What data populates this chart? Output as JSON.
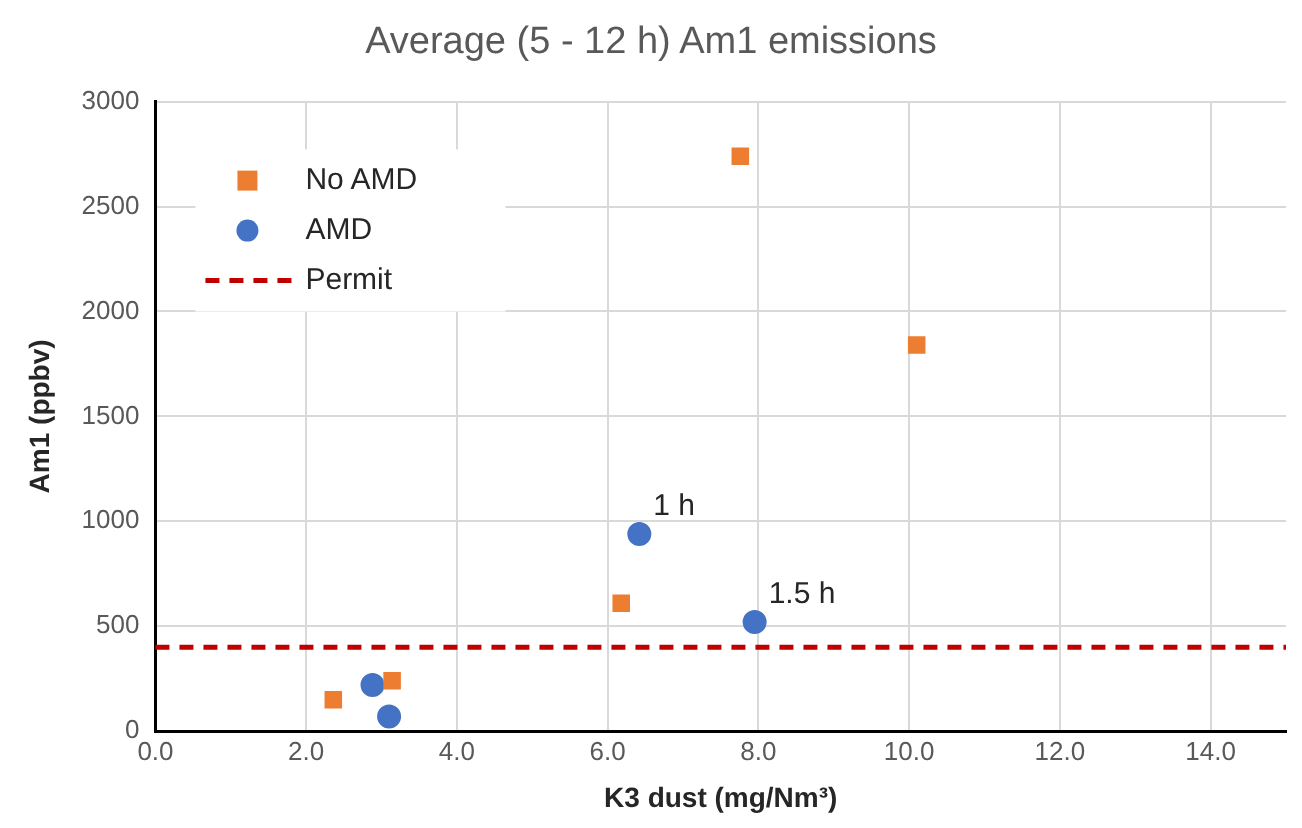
{
  "chart_data": {
    "type": "scatter",
    "title": "Average (5 - 12 h) Am1 emissions",
    "xlabel": "K3 dust (mg/Nm³)",
    "ylabel": "Am1 (ppbv)",
    "series": [
      {
        "name": "No AMD",
        "color": "#ed7d31",
        "marker": "square",
        "x": [
          2.36,
          3.14,
          6.18,
          7.76,
          10.1
        ],
        "values": [
          150,
          240,
          610,
          2740,
          1840
        ]
      },
      {
        "name": "AMD",
        "color": "#4472c4",
        "marker": "circle",
        "x": [
          2.88,
          3.1,
          6.42,
          7.95
        ],
        "values": [
          220,
          70,
          940,
          520
        ]
      }
    ],
    "ref_lines": [
      {
        "axis": "y",
        "value": 400,
        "label": "Permit",
        "color": "#c00000",
        "line_style": "dashed"
      }
    ],
    "annotations": [
      {
        "text": "1 h",
        "x": 6.42,
        "y": 940
      },
      {
        "text": "1.5 h",
        "x": 7.95,
        "y": 520
      }
    ],
    "xlim": [
      0,
      15
    ],
    "xticks": [
      {
        "value": 0,
        "label": "0.0"
      },
      {
        "value": 2,
        "label": "2.0"
      },
      {
        "value": 4,
        "label": "4.0"
      },
      {
        "value": 6,
        "label": "6.0"
      },
      {
        "value": 8,
        "label": "8.0"
      },
      {
        "value": 10,
        "label": "10.0"
      },
      {
        "value": 12,
        "label": "12.0"
      },
      {
        "value": 14,
        "label": "14.0"
      }
    ],
    "ylim": [
      0,
      3000
    ],
    "yticks": [
      0,
      500,
      1000,
      1500,
      2000,
      2500,
      3000
    ],
    "grid": true,
    "legend": "top left"
  }
}
